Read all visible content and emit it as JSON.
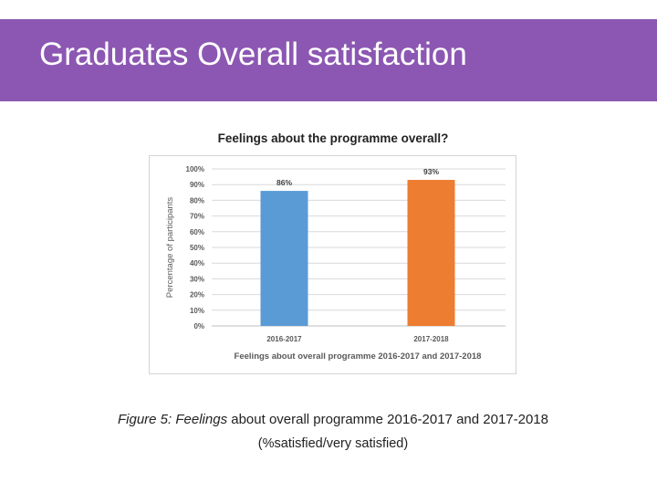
{
  "slide": {
    "title": "Graduates Overall satisfaction",
    "header_color": "#8c57b3"
  },
  "figure": {
    "caption_label": "Figure 5:",
    "caption_italic": "Feelings",
    "caption_rest": "about overall programme 2016-2017 and 2017-2018",
    "caption_sub": "(%satisfied/very satisfied)"
  },
  "chart_data": {
    "type": "bar",
    "title": "Feelings about the programme overall?",
    "xlabel": "Feelings about overall programme 2016-2017 and 2017-2018",
    "ylabel": "Percentage of participants",
    "categories": [
      "2016-2017",
      "2017-2018"
    ],
    "values": [
      86,
      93
    ],
    "data_labels": [
      "86%",
      "93%"
    ],
    "bar_colors": [
      "#5b9bd5",
      "#ed7d31"
    ],
    "ylim": [
      0,
      100
    ],
    "yticks": [
      0,
      10,
      20,
      30,
      40,
      50,
      60,
      70,
      80,
      90,
      100
    ],
    "ytick_labels": [
      "0%",
      "10%",
      "20%",
      "30%",
      "40%",
      "50%",
      "60%",
      "70%",
      "80%",
      "90%",
      "100%"
    ],
    "grid": true,
    "legend": "none"
  }
}
